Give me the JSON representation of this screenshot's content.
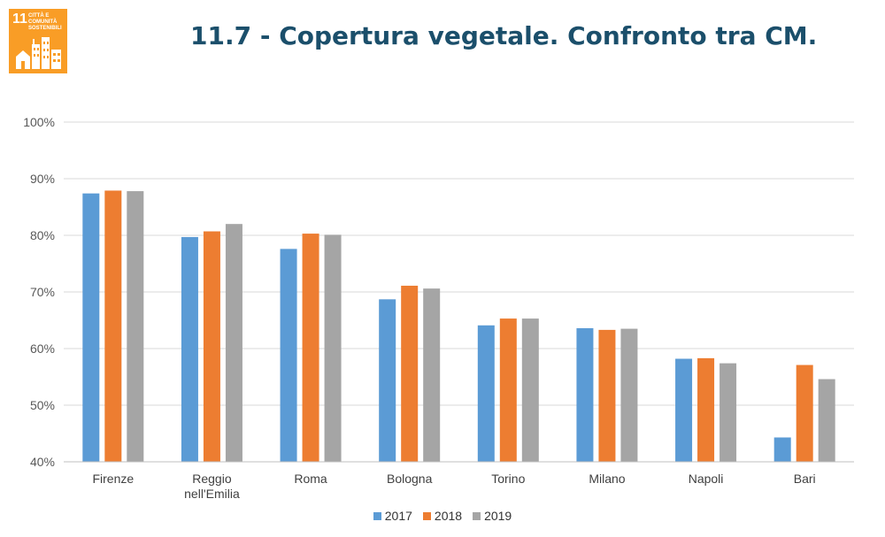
{
  "header": {
    "title": "11.7 - Copertura vegetale. Confronto tra CM.",
    "logo": {
      "number": "11",
      "text_line1": "CITTÀ E COMUNITÀ",
      "text_line2": "SOSTENIBILI",
      "color": "#f99d26"
    }
  },
  "chart_data": {
    "type": "bar",
    "categories": [
      [
        "Firenze"
      ],
      [
        "Reggio",
        "nell'Emilia"
      ],
      [
        "Roma"
      ],
      [
        "Bologna"
      ],
      [
        "Torino"
      ],
      [
        "Milano"
      ],
      [
        "Napoli"
      ],
      [
        "Bari"
      ]
    ],
    "series": [
      {
        "name": "2017",
        "color": "#5b9bd5",
        "values": [
          87.4,
          79.7,
          77.6,
          68.7,
          64.1,
          63.6,
          58.2,
          44.3
        ]
      },
      {
        "name": "2018",
        "color": "#ed7d31",
        "values": [
          87.9,
          80.7,
          80.3,
          71.1,
          65.3,
          63.3,
          58.3,
          57.1
        ]
      },
      {
        "name": "2019",
        "color": "#a5a5a5",
        "values": [
          87.8,
          82.0,
          80.1,
          70.6,
          65.3,
          63.5,
          57.4,
          54.6
        ]
      }
    ],
    "yticks": [
      "40%",
      "50%",
      "60%",
      "70%",
      "80%",
      "90%",
      "100%"
    ],
    "ylim": [
      40,
      100
    ],
    "grid": true,
    "legend_position": "bottom"
  }
}
